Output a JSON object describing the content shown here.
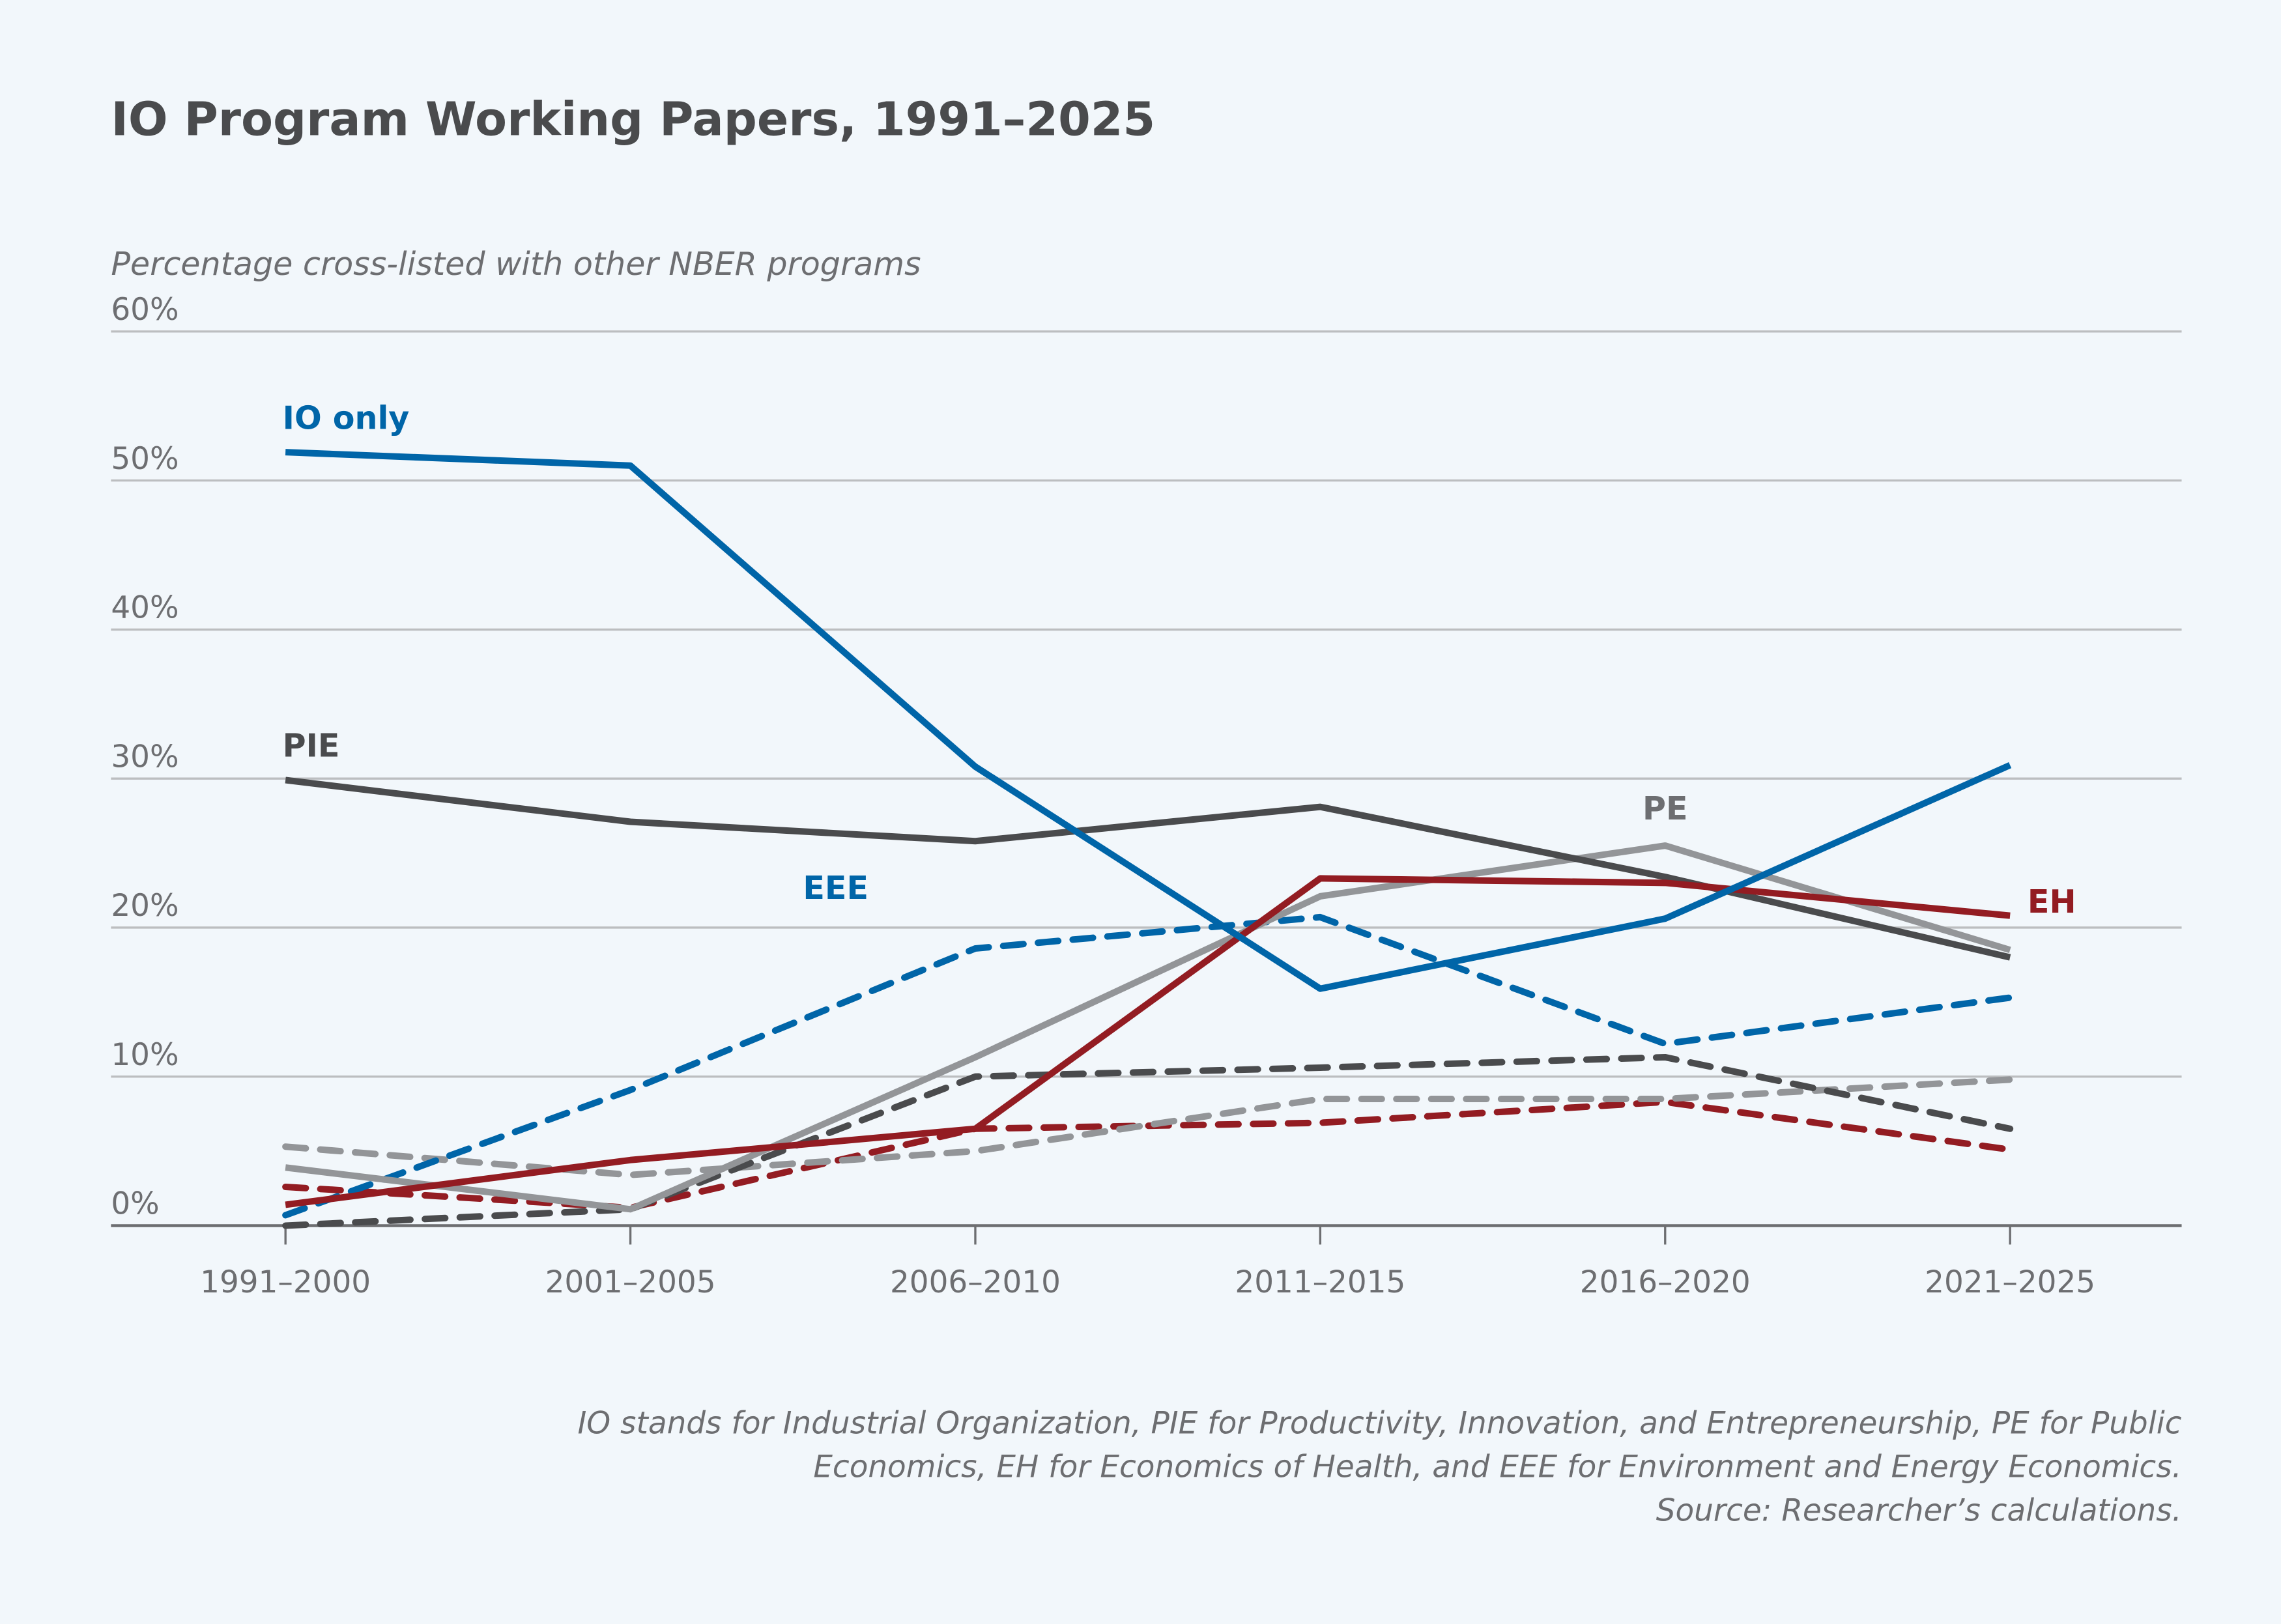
{
  "chart_data": {
    "type": "line",
    "title": "IO Program Working Papers, 1991–2025",
    "ylabel": "Percentage cross-listed with other NBER programs",
    "xlabel": "",
    "categories": [
      "1991–2000",
      "2001–2005",
      "2006–2010",
      "2011–2015",
      "2016–2020",
      "2021–2025"
    ],
    "ylim": [
      0,
      60
    ],
    "yticks": [
      0,
      10,
      20,
      30,
      40,
      50,
      60
    ],
    "ytick_labels": [
      "0%",
      "10%",
      "20%",
      "30%",
      "40%",
      "50%",
      "60%"
    ],
    "grid": true,
    "series": [
      {
        "name": "IO only",
        "color": "#0065a8",
        "dashed": false,
        "values": [
          51.9,
          51.0,
          30.8,
          15.9,
          20.6,
          30.9
        ]
      },
      {
        "name": "PIE",
        "color": "#4a4b4d",
        "dashed": false,
        "values": [
          29.9,
          27.1,
          25.8,
          28.1,
          23.4,
          18.0
        ]
      },
      {
        "name": "PE",
        "color": "#939598",
        "dashed": false,
        "values": [
          3.9,
          1.1,
          11.3,
          22.1,
          25.5,
          18.5
        ]
      },
      {
        "name": "EH",
        "color": "#931c22",
        "dashed": false,
        "values": [
          1.4,
          4.4,
          6.5,
          23.3,
          23.0,
          20.8
        ]
      },
      {
        "name": "EEE",
        "color": "#0065a8",
        "dashed": true,
        "values": [
          0.7,
          9.1,
          18.6,
          20.7,
          12.2,
          15.3
        ]
      },
      {
        "color": "#4a4b4d",
        "dashed": true,
        "values": [
          0.0,
          1.1,
          10.0,
          10.6,
          11.3,
          6.5
        ]
      },
      {
        "color": "#939598",
        "dashed": true,
        "values": [
          5.3,
          3.4,
          5.0,
          8.5,
          8.5,
          9.8
        ]
      },
      {
        "color": "#931c22",
        "dashed": true,
        "values": [
          2.6,
          1.2,
          6.5,
          6.9,
          8.3,
          5.1
        ]
      }
    ],
    "notes": [
      "IO stands for Industrial Organization, PIE for Productivity, Innovation, and Entrepreneurship, PE for Public",
      "Economics, EH for Economics of Health, and EEE for Environment and Energy Economics.",
      "Source: Researcher’s calculations."
    ]
  }
}
